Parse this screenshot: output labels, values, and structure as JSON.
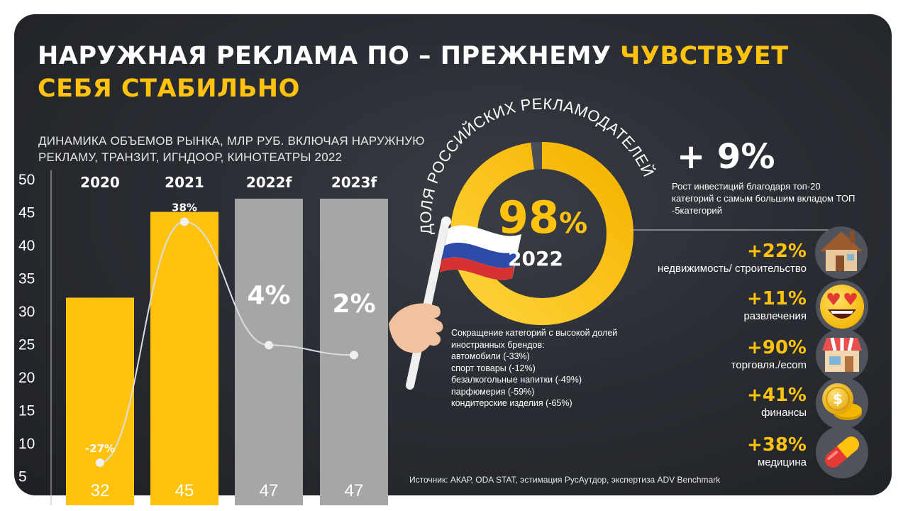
{
  "title": {
    "part1": "НАРУЖНАЯ РЕКЛАМА ПО – ПРЕЖНЕМУ ",
    "part2": "ЧУВСТВУЕТ СЕБЯ СТАБИЛЬНО"
  },
  "subtitle": "ДИНАМИКА ОБЪЕМОВ РЫНКА, МЛР РУБ. ВКЛЮЧАЯ НАРУЖНУЮ РЕКЛАМУ, ТРАНЗИТ, ИГНДООР, КИНОТЕАТРЫ 2022",
  "chart_data": {
    "type": "bar",
    "categories": [
      "2020",
      "2021",
      "2022f",
      "2023f"
    ],
    "values": [
      32,
      45,
      47,
      47
    ],
    "value_labels": [
      "32",
      "45",
      "47",
      "47"
    ],
    "bar_colors": [
      "#ffc20e",
      "#ffc20e",
      "#a6a6a6",
      "#a6a6a6"
    ],
    "ylim": [
      0,
      50
    ],
    "yticks": [
      5,
      10,
      15,
      20,
      25,
      30,
      35,
      40,
      45,
      50
    ],
    "growth_line": {
      "labels": [
        "-27%",
        "38%",
        "4%",
        "2%"
      ],
      "y_positions": [
        7,
        43.5,
        24.8,
        23.3
      ]
    },
    "grid": false
  },
  "donut": {
    "arc_label": "ДОЛЯ РОССИЙСКИХ РЕКЛАМОДАТЕЛЕЙ",
    "value": "98",
    "percent_sign": "%",
    "share": 0.98,
    "year": "2022"
  },
  "growth": {
    "value": "+ 9%",
    "text": "Рост инвестиций благодаря топ-20 категорий с самым большим вкладом ТОП -5категорий"
  },
  "categories": [
    {
      "pct": "+22%",
      "label": "недвижимость/ строительство",
      "icon": "house-icon"
    },
    {
      "pct": "+11%",
      "label": "развлечения",
      "icon": "heart-eyes-emoji-icon"
    },
    {
      "pct": "+90%",
      "label": "торговля./ecom",
      "icon": "shop-icon"
    },
    {
      "pct": "+41%",
      "label": "финансы",
      "icon": "coins-icon"
    },
    {
      "pct": "+38%",
      "label": "медицина",
      "icon": "pill-icon"
    }
  ],
  "reduction": {
    "heading": "Сокращение категорий с высокой долей иностранных брендов:",
    "items": [
      "автомобили (-33%)",
      "спорт товары (-12%)",
      "безалкогольные напитки (-49%)",
      "парфюмерия (-59%)",
      "кондитерские изделия (-65%)"
    ]
  },
  "source": "Источник: АКАР, ODA STAT, эстимация РусАутдор, экспертиза ADV Benchmark",
  "colors": {
    "accent": "#ffc20e",
    "gray_bar": "#a6a6a6",
    "background": "#2a2d33"
  }
}
